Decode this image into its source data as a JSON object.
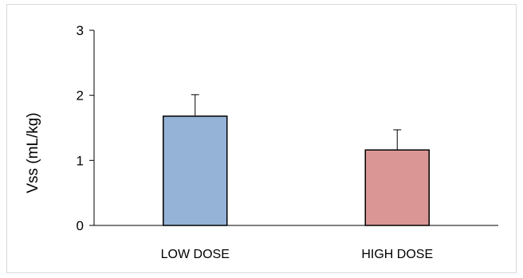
{
  "chart_data": {
    "type": "bar",
    "title": "",
    "xlabel": "",
    "ylabel": "Vss (mL/kg)",
    "ylim": [
      0,
      3
    ],
    "yticks": [
      0,
      1,
      2,
      3
    ],
    "categories": [
      "LOW DOSE",
      "HIGH DOSE"
    ],
    "values": [
      1.68,
      1.16
    ],
    "error_upper": [
      0.33,
      0.31
    ],
    "colors": [
      "#95b3d7",
      "#d99694"
    ],
    "grid": false,
    "legend": "none"
  }
}
